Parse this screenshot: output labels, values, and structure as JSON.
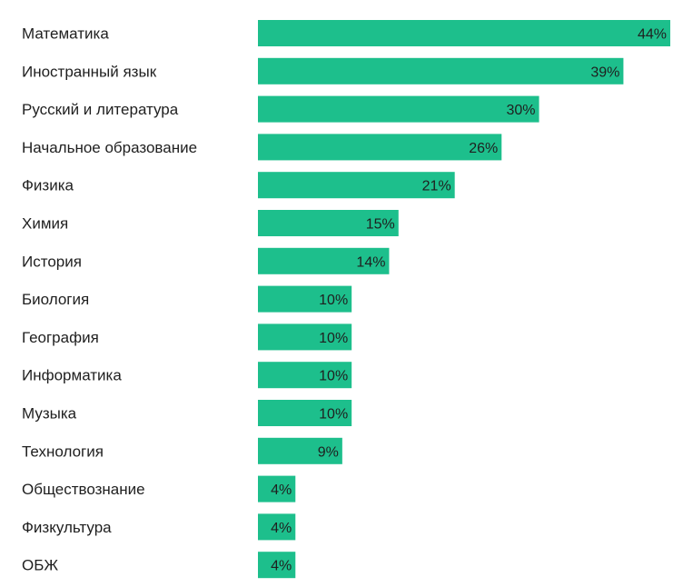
{
  "chart_data": {
    "type": "bar",
    "orientation": "horizontal",
    "categories": [
      "Математика",
      "Иностранный язык",
      "Русский и литература",
      "Начальное образование",
      "Физика",
      "Химия",
      "История",
      "Биология",
      "География",
      "Информатика",
      "Музыка",
      "Технология",
      "Обществознание",
      "Физкультура",
      "ОБЖ"
    ],
    "values": [
      44,
      39,
      30,
      26,
      21,
      15,
      14,
      10,
      10,
      10,
      10,
      9,
      4,
      4,
      4
    ],
    "value_labels": [
      "44%",
      "39%",
      "30%",
      "26%",
      "21%",
      "15%",
      "14%",
      "10%",
      "10%",
      "10%",
      "10%",
      "9%",
      "4%",
      "4%",
      "4%"
    ],
    "unit": "%",
    "title": "",
    "xlabel": "",
    "ylabel": "",
    "xlim": [
      0,
      44
    ],
    "grid": false,
    "legend": "none",
    "bar_color": "#1dbf8c",
    "label_color": "#1f1f1f",
    "background": "#ffffff"
  }
}
